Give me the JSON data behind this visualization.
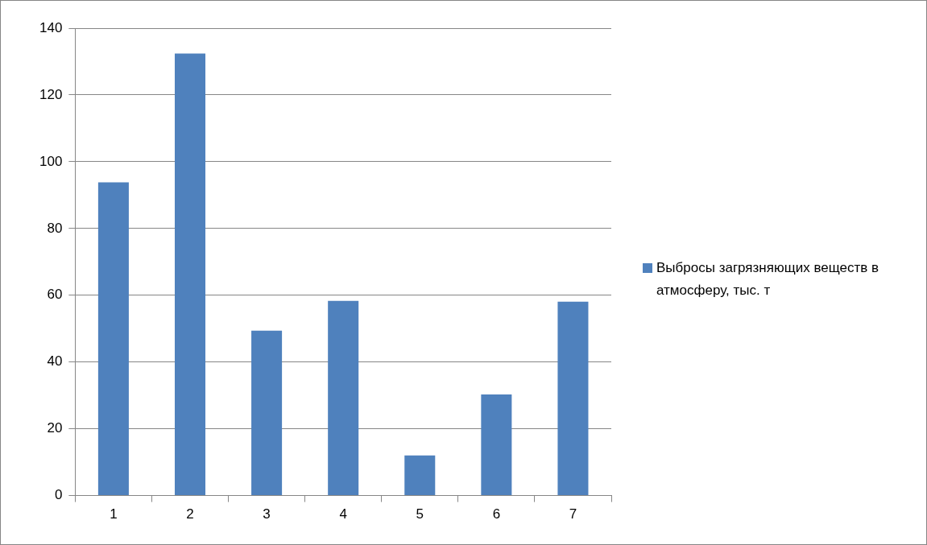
{
  "chart_data": {
    "type": "bar",
    "categories": [
      "1",
      "2",
      "3",
      "4",
      "5",
      "6",
      "7"
    ],
    "series": [
      {
        "name": "Выбросы загрязняющих веществ в атмосферу, тыс. т",
        "color": "#4f81bd",
        "values": [
          93.8,
          132.4,
          49.4,
          58.3,
          12.0,
          30.3,
          58.1
        ]
      }
    ],
    "ylim": [
      0,
      140
    ],
    "yticks": [
      0,
      20,
      40,
      60,
      80,
      100,
      120,
      140
    ],
    "grid": "y",
    "legend": "right"
  }
}
